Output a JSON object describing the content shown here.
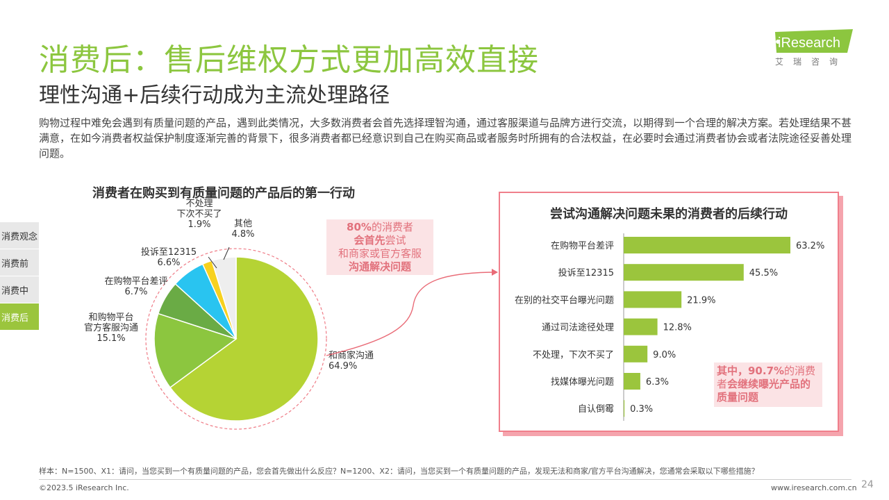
{
  "header": {
    "title": "消费后：售后维权方式更加高效直接",
    "subtitle": "理性沟通+后续行动成为主流处理路径",
    "description": "购物过程中难免会遇到有质量问题的产品，遇到此类情况，大多数消费者会首先选择理智沟通，通过客服渠道与品牌方进行交流，以期得到一个合理的解决方案。若处理结果不甚满意，在如今消费者权益保护制度逐渐完善的背景下，很多消费者都已经意识到自己在购买商品或者服务时所拥有的合法权益，在必要时会通过消费者协会或者法院途径妥善处理问题。"
  },
  "logo": {
    "brand": "iResearch",
    "cn": "艾瑞咨询",
    "accent": "#8cc63f"
  },
  "nav": {
    "items": [
      {
        "label": "消费观念",
        "active": false
      },
      {
        "label": "消费前",
        "active": false
      },
      {
        "label": "消费中",
        "active": false
      },
      {
        "label": "消费后",
        "active": true
      }
    ]
  },
  "callouts": {
    "left_line1_pct": "80%",
    "left_line1_rest": "的消费者",
    "left_line2_bold": "会首先",
    "left_line2_rest": "尝试",
    "left_line3": "和商家或官方客服",
    "left_line4": "沟通解决问题",
    "right_bold1": "其中，90.7%",
    "right_rest1": "的消费",
    "right_rest2": "者",
    "right_bold2": "会继续曝光产品的",
    "right_bold3": "质量问题"
  },
  "footer": {
    "note": "样本：N=1500、X1：请问，当您买到一个有质量问题的产品，您会首先做出什么反应？N=1200、X2：请问，当您买到一个有质量问题的产品，发现无法和商家/官方平台沟通解决，您通常会采取以下哪些措施？",
    "copyright": "©2023.5 iResearch Inc.",
    "site": "www.iresearch.com.cn",
    "page": "24"
  },
  "chart_data": [
    {
      "type": "pie",
      "title": "消费者在购买到有质量问题的产品后的第一行动",
      "slices": [
        {
          "label": "和商家沟通",
          "value": 64.9,
          "display": "64.9%",
          "color": "#b5d334"
        },
        {
          "label": "和购物平台官方客服沟通",
          "value": 15.1,
          "display": "15.1%",
          "color": "#8cc63f"
        },
        {
          "label": "在购物平台差评",
          "value": 6.7,
          "display": "6.7%",
          "color": "#6aab45"
        },
        {
          "label": "投诉至12315",
          "value": 6.6,
          "display": "6.6%",
          "color": "#29c4f0"
        },
        {
          "label": "不处理下次不买了",
          "value": 1.9,
          "display": "1.9%",
          "color": "#f7d11e"
        },
        {
          "label": "其他",
          "value": 4.8,
          "display": "4.8%",
          "color": "#eeeeee"
        }
      ],
      "slice_labels": [
        [
          "和商家沟通",
          "64.9%"
        ],
        [
          "和购物平台",
          "官方客服沟通",
          "15.1%"
        ],
        [
          "在购物平台差评",
          "6.7%"
        ],
        [
          "投诉至12315",
          "6.6%"
        ],
        [
          "不处理",
          "下次不买了",
          "1.9%"
        ],
        [
          "其他",
          "4.8%"
        ]
      ]
    },
    {
      "type": "bar",
      "orientation": "horizontal",
      "title": "尝试沟通解决问题未果的消费者的后续行动",
      "categories": [
        "在购物平台差评",
        "投诉至12315",
        "在别的社交平台曝光问题",
        "通过司法途径处理",
        "不处理，下次不买了",
        "找媒体曝光问题",
        "自认倒霉"
      ],
      "values": [
        63.2,
        45.5,
        21.9,
        12.8,
        9.0,
        6.3,
        0.3
      ],
      "value_labels": [
        "63.2%",
        "45.5%",
        "21.9%",
        "12.8%",
        "9.0%",
        "6.3%",
        "0.3%"
      ],
      "color": "#9bc53d"
    }
  ]
}
